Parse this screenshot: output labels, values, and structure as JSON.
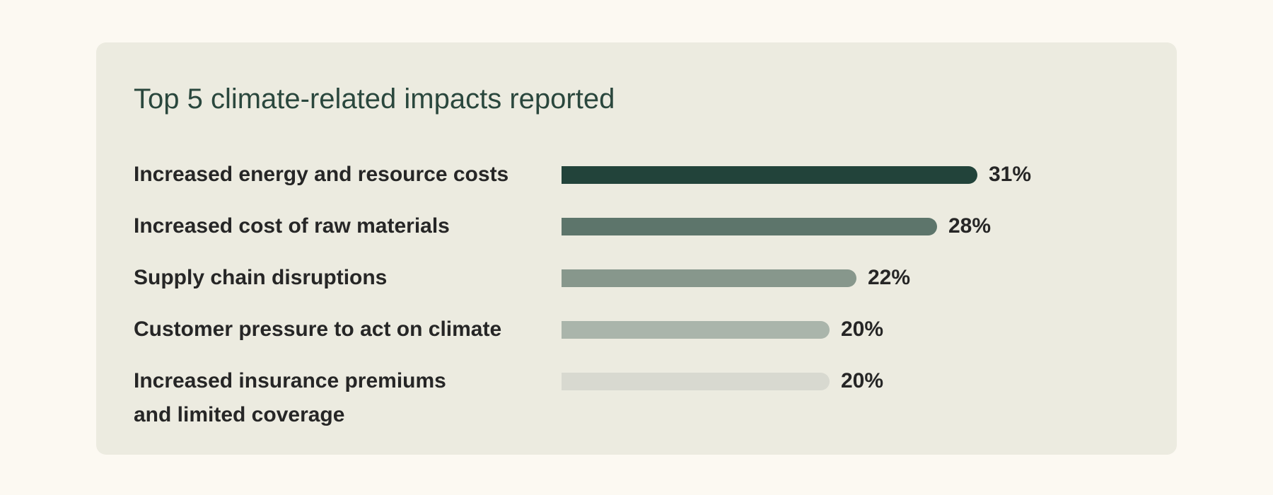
{
  "chart_data": {
    "type": "bar",
    "orientation": "horizontal",
    "title": "Top 5 climate-related impacts reported",
    "categories": [
      "Increased energy and resource costs",
      "Increased cost of raw materials",
      "Supply chain disruptions",
      "Customer pressure to act on climate",
      "Increased insurance premiums and limited coverage"
    ],
    "category_lines": [
      [
        "Increased energy and resource costs"
      ],
      [
        "Increased cost of raw materials"
      ],
      [
        "Supply chain disruptions"
      ],
      [
        "Customer pressure to act on climate"
      ],
      [
        "Increased insurance premiums",
        "and limited coverage"
      ]
    ],
    "values": [
      31,
      28,
      22,
      20,
      20
    ],
    "value_labels": [
      "31%",
      "28%",
      "22%",
      "20%",
      "20%"
    ],
    "bar_colors": [
      "#22433a",
      "#5d756b",
      "#87978c",
      "#aab5ab",
      "#d8d9d0"
    ],
    "unit": "%",
    "grid": false,
    "legend": "none"
  }
}
